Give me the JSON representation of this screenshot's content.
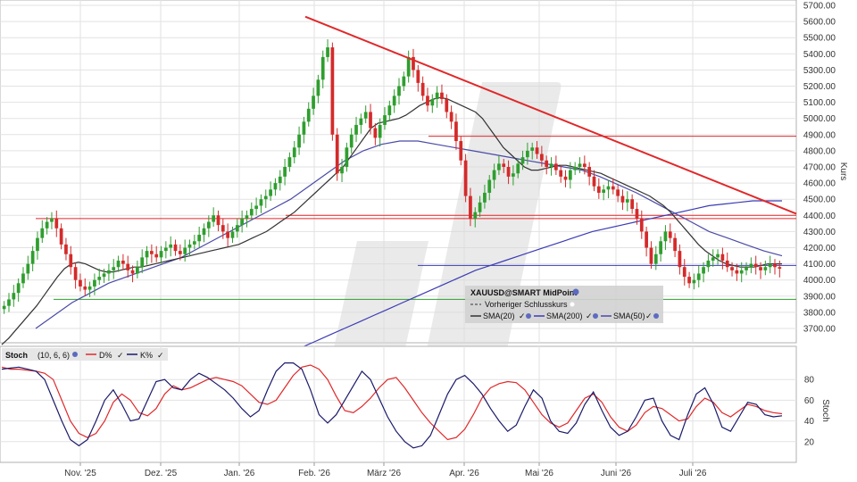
{
  "chart_data": [
    {
      "type": "candlestick",
      "instrument": "XAUUSD@SMART MidPoint",
      "ylabel": "Kurs",
      "ylim": [
        3600,
        5700
      ],
      "yticks": [
        "5700.00",
        "5600.00",
        "5500.00",
        "5400.00",
        "5300.00",
        "5200.00",
        "5100.00",
        "5000.00",
        "4900.00",
        "4800.00",
        "4700.00",
        "4600.00",
        "4500.00",
        "4400.00",
        "4300.00",
        "4200.00",
        "4100.00",
        "4000.00",
        "3900.00",
        "3800.00",
        "3700.00"
      ],
      "xticks": [
        "Nov. '25",
        "Dez. '25",
        "Jan. '26",
        "Feb. '26",
        "März '26",
        "Apr. '26",
        "Mai '26",
        "Juni '26",
        "Juli '26"
      ],
      "legend": {
        "title": "XAUUSD@SMART MidPoint",
        "prev_close": "Vorheriger Schlusskurs",
        "sma20": "SMA(20)",
        "sma200": "SMA(200)",
        "sma50": "SMA(50)"
      },
      "colors": {
        "up": "#2e9e2e",
        "down": "#d42a2a",
        "sma20": "#333333",
        "sma200": "#3b3bb5",
        "sma50": "#4a4aa8",
        "trend": "#e0282a",
        "support": "#2e9e2e"
      },
      "closes": [
        3840,
        3880,
        3920,
        3980,
        4040,
        4100,
        4180,
        4260,
        4320,
        4360,
        4380,
        4320,
        4220,
        4160,
        4080,
        4000,
        3960,
        3940,
        3960,
        4000,
        4020,
        4040,
        4060,
        4080,
        4120,
        4100,
        4060,
        4040,
        4080,
        4140,
        4180,
        4160,
        4140,
        4180,
        4200,
        4220,
        4180,
        4160,
        4200,
        4220,
        4240,
        4280,
        4320,
        4360,
        4400,
        4340,
        4300,
        4260,
        4300,
        4340,
        4380,
        4400,
        4440,
        4460,
        4500,
        4520,
        4560,
        4600,
        4640,
        4700,
        4760,
        4820,
        4900,
        4980,
        5060,
        5140,
        5240,
        5380,
        5440,
        4900,
        4660,
        4700,
        4820,
        4900,
        4960,
        5000,
        5040,
        4940,
        4880,
        4960,
        5020,
        5080,
        5140,
        5200,
        5260,
        5380,
        5300,
        5220,
        5140,
        5080,
        5120,
        5160,
        5120,
        5040,
        4980,
        4860,
        4740,
        4520,
        4380,
        4420,
        4480,
        4540,
        4620,
        4680,
        4720,
        4700,
        4640,
        4660,
        4720,
        4760,
        4800,
        4820,
        4780,
        4740,
        4700,
        4720,
        4680,
        4640,
        4620,
        4680,
        4700,
        4720,
        4700,
        4640,
        4580,
        4540,
        4560,
        4580,
        4560,
        4520,
        4480,
        4500,
        4440,
        4380,
        4300,
        4200,
        4100,
        4160,
        4240,
        4300,
        4260,
        4180,
        4080,
        4020,
        3980,
        4000,
        4040,
        4080,
        4120,
        4140,
        4160,
        4120,
        4080,
        4060,
        4040,
        4060,
        4080,
        4100,
        4080,
        4060,
        4080,
        4100,
        4080,
        4070
      ],
      "sma20": [
        3600,
        3640,
        3690,
        3740,
        3790,
        3840,
        3900,
        3960,
        4020,
        4070,
        4100,
        4110,
        4100,
        4080,
        4060,
        4050,
        4050,
        4060,
        4070,
        4080,
        4080,
        4090,
        4100,
        4110,
        4120,
        4130,
        4140,
        4150,
        4160,
        4170,
        4180,
        4190,
        4200,
        4210,
        4220,
        4240,
        4260,
        4280,
        4300,
        4330,
        4360,
        4390,
        4420,
        4460,
        4500,
        4540,
        4580,
        4620,
        4660,
        4700,
        4760,
        4820,
        4880,
        4940,
        4970,
        4980,
        4990,
        5000,
        5020,
        5050,
        5080,
        5100,
        5120,
        5130,
        5120,
        5100,
        5080,
        5060,
        5040,
        5000,
        4940,
        4880,
        4820,
        4780,
        4740,
        4700,
        4680,
        4680,
        4690,
        4700,
        4710,
        4710,
        4700,
        4690,
        4680,
        4670,
        4660,
        4640,
        4620,
        4600,
        4580,
        4560,
        4540,
        4520,
        4490,
        4460,
        4420,
        4370,
        4320,
        4270,
        4220,
        4180,
        4150,
        4120,
        4100,
        4090,
        4080,
        4080,
        4080,
        4090,
        4100,
        4100,
        4100
      ],
      "sma200": [
        3380,
        3420,
        3460,
        3500,
        3540,
        3580,
        3620,
        3660,
        3700,
        3740,
        3780,
        3820,
        3860,
        3900,
        3940,
        3980,
        4020,
        4060,
        4090,
        4120,
        4150,
        4180,
        4210,
        4240,
        4270,
        4300,
        4320,
        4340,
        4360,
        4380,
        4400,
        4420,
        4440,
        4460,
        4470,
        4480,
        4490,
        4490,
        4490
      ],
      "sma50": [
        3700,
        3780,
        3860,
        3920,
        3980,
        4020,
        4060,
        4100,
        4140,
        4200,
        4260,
        4320,
        4380,
        4440,
        4500,
        4580,
        4660,
        4740,
        4800,
        4840,
        4860,
        4860,
        4840,
        4820,
        4800,
        4780,
        4760,
        4740,
        4720,
        4700,
        4680,
        4640,
        4590,
        4540,
        4480,
        4420,
        4360,
        4300,
        4260,
        4220,
        4180,
        4150
      ],
      "annotations": {
        "resistance_1": 4890,
        "resistance_2": 4400,
        "resistance_3": 4380,
        "support_1": 4090,
        "support_2": 3880
      }
    },
    {
      "type": "line",
      "title": "Stoch",
      "params": "(10, 6, 6)",
      "ylabel": "Stoch",
      "ylim": [
        0,
        100
      ],
      "yticks": [
        "80",
        "60",
        "40",
        "20"
      ],
      "series": [
        {
          "name": "D%",
          "color": "#e0282a",
          "values": [
            92,
            90,
            90,
            89,
            88,
            86,
            80,
            60,
            40,
            28,
            24,
            28,
            40,
            58,
            66,
            60,
            48,
            45,
            52,
            66,
            74,
            70,
            72,
            76,
            80,
            82,
            80,
            78,
            74,
            66,
            58,
            56,
            60,
            72,
            84,
            92,
            94,
            90,
            80,
            64,
            50,
            48,
            54,
            62,
            72,
            80,
            82,
            72,
            60,
            48,
            38,
            30,
            22,
            24,
            32,
            46,
            62,
            72,
            76,
            78,
            77,
            70,
            58,
            46,
            38,
            34,
            38,
            50,
            62,
            66,
            58,
            44,
            34,
            30,
            36,
            48,
            54,
            52,
            46,
            40,
            42,
            54,
            62,
            58,
            48,
            44,
            50,
            56,
            54,
            50,
            48,
            47
          ]
        },
        {
          "name": "K%",
          "color": "#1a1a6a",
          "values": [
            90,
            91,
            92,
            90,
            88,
            80,
            60,
            40,
            22,
            16,
            22,
            40,
            60,
            70,
            56,
            40,
            42,
            60,
            78,
            80,
            72,
            70,
            80,
            86,
            82,
            76,
            70,
            62,
            52,
            44,
            50,
            70,
            88,
            96,
            96,
            90,
            70,
            46,
            38,
            46,
            60,
            74,
            88,
            80,
            62,
            44,
            30,
            20,
            14,
            16,
            26,
            46,
            66,
            80,
            84,
            76,
            66,
            52,
            40,
            30,
            36,
            54,
            70,
            62,
            40,
            30,
            28,
            38,
            56,
            68,
            50,
            34,
            26,
            30,
            44,
            60,
            62,
            40,
            26,
            22,
            46,
            66,
            72,
            56,
            34,
            30,
            44,
            58,
            56,
            46,
            44,
            45
          ]
        }
      ]
    }
  ]
}
